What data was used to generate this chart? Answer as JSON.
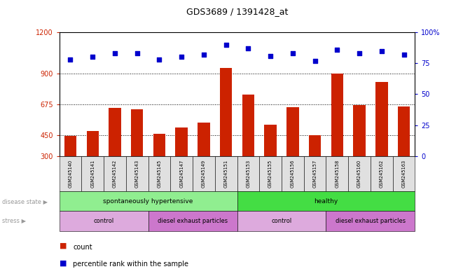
{
  "title": "GDS3689 / 1391428_at",
  "samples": [
    "GSM245140",
    "GSM245141",
    "GSM245142",
    "GSM245143",
    "GSM245145",
    "GSM245147",
    "GSM245149",
    "GSM245151",
    "GSM245153",
    "GSM245155",
    "GSM245156",
    "GSM245157",
    "GSM245158",
    "GSM245160",
    "GSM245162",
    "GSM245163"
  ],
  "counts": [
    445,
    480,
    650,
    640,
    460,
    510,
    545,
    940,
    745,
    530,
    655,
    450,
    900,
    670,
    840,
    660
  ],
  "percentiles": [
    78,
    80,
    83,
    83,
    78,
    80,
    82,
    90,
    87,
    81,
    83,
    77,
    86,
    83,
    85,
    82
  ],
  "bar_color": "#cc2200",
  "dot_color": "#0000cc",
  "ylim_left": [
    300,
    1200
  ],
  "yticks_left": [
    300,
    450,
    675,
    900,
    1200
  ],
  "ylim_right": [
    0,
    100
  ],
  "yticks_right": [
    0,
    25,
    50,
    75,
    100
  ],
  "ylabel_left_color": "#cc2200",
  "ylabel_right_color": "#0000cc",
  "disease_state_groups": [
    {
      "label": "spontaneously hypertensive",
      "start": 0,
      "end": 8,
      "color": "#90ee90"
    },
    {
      "label": "healthy",
      "start": 8,
      "end": 16,
      "color": "#44dd44"
    }
  ],
  "stress_groups": [
    {
      "label": "control",
      "start": 0,
      "end": 4,
      "color": "#ddaadd"
    },
    {
      "label": "diesel exhaust particles",
      "start": 4,
      "end": 8,
      "color": "#cc77cc"
    },
    {
      "label": "control",
      "start": 8,
      "end": 12,
      "color": "#ddaadd"
    },
    {
      "label": "diesel exhaust particles",
      "start": 12,
      "end": 16,
      "color": "#cc77cc"
    }
  ],
  "background_color": "#ffffff",
  "bar_bottom": 300,
  "grid_dotted_at": [
    450,
    675,
    900
  ]
}
